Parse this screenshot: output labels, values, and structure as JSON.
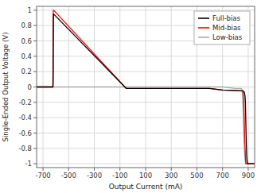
{
  "chart_data": {
    "type": "line",
    "xlabel": "Output Current (mA)",
    "ylabel": "Single-Ended Output Voltage (V)",
    "xlim": [
      -750,
      950
    ],
    "ylim": [
      -1.05,
      1.05
    ],
    "xticks": [
      -700,
      -500,
      -300,
      -100,
      100,
      300,
      500,
      700,
      900
    ],
    "yticks": [
      -1.0,
      -0.8,
      -0.6,
      -0.4,
      -0.2,
      0.0,
      0.2,
      0.4,
      0.6,
      0.8,
      1.0
    ],
    "grid": true,
    "legend": "upper right",
    "series": [
      {
        "name": "Full-bias",
        "color": "#000000",
        "x": [
          -750,
          -622,
          -621,
          -620.5,
          -620,
          -619.5,
          -619,
          -618,
          -617,
          -50,
          0,
          50,
          600,
          700,
          860,
          870,
          875,
          878,
          880,
          882,
          884,
          886,
          888,
          890,
          892,
          895,
          900,
          950
        ],
        "values": [
          0.0,
          0.0,
          0.05,
          0.15,
          0.4,
          0.7,
          0.9,
          0.95,
          0.95,
          -0.02,
          -0.02,
          -0.02,
          -0.02,
          -0.04,
          -0.05,
          -0.07,
          -0.12,
          -0.2,
          -0.35,
          -0.52,
          -0.65,
          -0.78,
          -0.88,
          -0.94,
          -0.97,
          -1.0,
          -1.0,
          -1.0
        ]
      },
      {
        "name": "Mid-bias",
        "color": "#ff0000",
        "x": [
          -750,
          -625,
          -624,
          -623,
          -622.5,
          -622,
          -621.5,
          -621,
          -620,
          -619,
          -617,
          -50,
          0,
          50,
          600,
          700,
          856,
          860,
          863,
          865,
          867,
          869,
          871,
          873,
          875,
          878,
          880,
          882,
          884,
          887,
          890,
          895,
          950
        ],
        "values": [
          0.0,
          0.0,
          0.02,
          0.08,
          0.2,
          0.5,
          0.75,
          0.9,
          1.0,
          1.0,
          1.0,
          -0.02,
          -0.02,
          -0.02,
          -0.02,
          -0.04,
          -0.05,
          -0.08,
          -0.12,
          -0.18,
          -0.28,
          -0.42,
          -0.56,
          -0.68,
          -0.78,
          -0.9,
          -0.96,
          -1.0,
          -1.0,
          -1.0,
          -1.0,
          -1.0,
          -1.0
        ]
      },
      {
        "name": "Low-bias",
        "color": "#aaaaaa",
        "x": [
          -750,
          -621,
          -619,
          -617,
          -100,
          0,
          100,
          600,
          700,
          800,
          848,
          850,
          852,
          854,
          856,
          858,
          860,
          862,
          864,
          866,
          868,
          870,
          873,
          876,
          880,
          885,
          890,
          950
        ],
        "values": [
          0.0,
          0.0,
          0.0,
          0.0,
          0.0,
          0.0,
          0.0,
          0.0,
          0.0,
          -0.02,
          -0.02,
          -0.03,
          -0.05,
          -0.08,
          -0.14,
          -0.22,
          -0.32,
          -0.44,
          -0.55,
          -0.65,
          -0.74,
          -0.82,
          -0.9,
          -0.96,
          -1.0,
          -1.0,
          -1.0,
          -1.0
        ]
      }
    ]
  }
}
